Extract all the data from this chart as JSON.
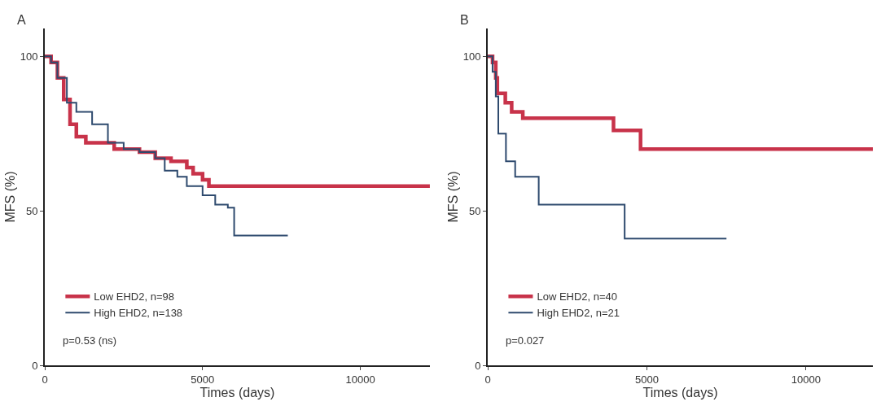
{
  "chart_data": [
    {
      "type": "step",
      "title": "A",
      "xlabel": "Times (days)",
      "ylabel": "MFS (%)",
      "xlim": [
        0,
        12200
      ],
      "xticks": [
        0,
        5000,
        10000
      ],
      "ylim": [
        0,
        109
      ],
      "yticks": [
        0,
        50,
        100
      ],
      "legend": "bottom left",
      "annotations": [
        "p=0.53 (ns)"
      ],
      "series": [
        {
          "name": "Low EHD2, n=98",
          "color": "#c8334a",
          "x": [
            0,
            200,
            400,
            600,
            800,
            1000,
            1300,
            2000,
            2200,
            3000,
            3500,
            4000,
            4500,
            4700,
            5000,
            5200,
            12200
          ],
          "values": [
            100,
            98,
            93,
            86,
            78,
            74,
            72,
            72,
            70,
            69,
            67,
            66,
            64,
            62,
            60,
            58,
            58
          ]
        },
        {
          "name": "High EHD2, n=138",
          "color": "#2e4a6e",
          "x": [
            0,
            200,
            400,
            700,
            1000,
            1500,
            2000,
            2500,
            3000,
            3500,
            3800,
            4200,
            4500,
            5000,
            5400,
            5800,
            6000,
            7700
          ],
          "values": [
            100,
            98,
            93,
            85,
            82,
            78,
            72,
            70,
            69,
            67,
            63,
            61,
            58,
            55,
            52,
            51,
            42,
            42
          ]
        }
      ]
    },
    {
      "type": "step",
      "title": "B",
      "xlabel": "Times (days)",
      "ylabel": "MFS (%)",
      "xlim": [
        0,
        12100
      ],
      "xticks": [
        0,
        5000,
        10000
      ],
      "ylim": [
        0,
        109
      ],
      "yticks": [
        0,
        50,
        100
      ],
      "legend": "bottom left",
      "annotations": [
        "p=0.027"
      ],
      "series": [
        {
          "name": "Low EHD2, n=40",
          "color": "#c8334a",
          "x": [
            0,
            150,
            250,
            300,
            550,
            750,
            1100,
            3950,
            4800,
            12100
          ],
          "values": [
            100,
            98,
            93,
            88,
            85,
            82,
            80,
            76,
            70,
            70
          ]
        },
        {
          "name": "High EHD2, n=21",
          "color": "#2e4a6e",
          "x": [
            0,
            150,
            250,
            330,
            570,
            860,
            1600,
            4300,
            7500
          ],
          "values": [
            100,
            95,
            87,
            75,
            66,
            61,
            52,
            41,
            41
          ]
        }
      ]
    }
  ]
}
